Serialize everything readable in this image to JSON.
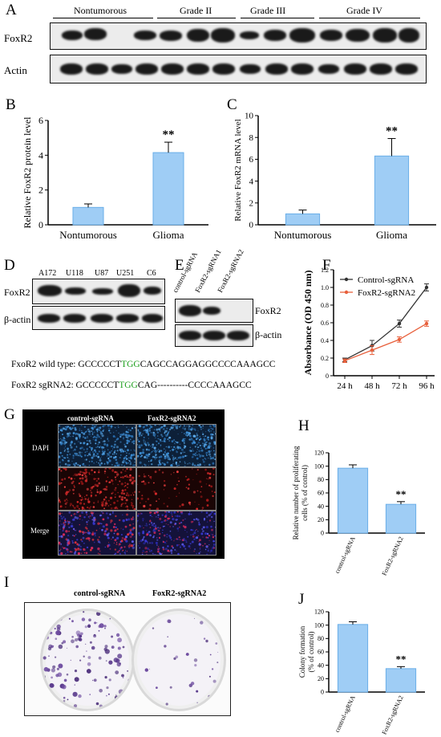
{
  "panels": [
    "A",
    "B",
    "C",
    "D",
    "E",
    "F",
    "G",
    "H",
    "I",
    "J"
  ],
  "panelA": {
    "groups": [
      "Nontumorous",
      "Grade II",
      "Grade III",
      "Grade IV"
    ],
    "rows": [
      "FoxR2",
      "Actin"
    ]
  },
  "panelB": {
    "chart_data": {
      "type": "bar",
      "categories": [
        "Nontumorous",
        "Glioma"
      ],
      "values": [
        1.0,
        4.15
      ],
      "errors": [
        0.2,
        0.6
      ],
      "ylabel": "Relative FoxR2 protein level",
      "ylim": [
        0,
        6
      ],
      "yticks": [
        "0",
        "2",
        "4",
        "6"
      ],
      "annotation": "**"
    }
  },
  "panelC": {
    "chart_data": {
      "type": "bar",
      "categories": [
        "Nontumorous",
        "Glioma"
      ],
      "values": [
        1.0,
        6.3
      ],
      "errors": [
        0.35,
        1.6
      ],
      "ylabel": "Relative FoxR2 mRNA level",
      "ylim": [
        0,
        10
      ],
      "yticks": [
        "0",
        "2",
        "4",
        "6",
        "8",
        "10"
      ],
      "annotation": "**"
    }
  },
  "panelD": {
    "lanes": [
      "A172",
      "U118",
      "U87",
      "U251",
      "C6"
    ],
    "rows": [
      "FoxR2",
      "β-actin"
    ]
  },
  "panelE": {
    "lanes": [
      "control-sgRNA",
      "FoxR2-sgRNA1",
      "FoxR2-sgRNA2"
    ],
    "rows": [
      "FoxR2",
      "β-actin"
    ]
  },
  "sequences": {
    "wt_label": "FxoR2 wild type:",
    "wt_pre": "GCCCCCT",
    "wt_pam": "TGG",
    "wt_post": "CAGCCAGGAGGCCCCAAAGCC",
    "sg_label": "FoxR2  sgRNA2:",
    "sg_pre": "GCCCCCT",
    "sg_pam": "TGG",
    "sg_post": "CAG----------CCCCAAAGCC",
    "pam_color": "#1a9e1a"
  },
  "panelF": {
    "chart_data": {
      "type": "line",
      "x": [
        "24 h",
        "48 h",
        "72 h",
        "96 h"
      ],
      "series": [
        {
          "name": "Control-sgRNA",
          "values": [
            0.18,
            0.34,
            0.59,
            1.0
          ],
          "errors": [
            0.02,
            0.06,
            0.04,
            0.04
          ],
          "color": "#333333"
        },
        {
          "name": "FoxR2-sgRNA2",
          "values": [
            0.17,
            0.29,
            0.41,
            0.59
          ],
          "errors": [
            0.02,
            0.05,
            0.03,
            0.03
          ],
          "color": "#e8603c"
        }
      ],
      "ylabel": "Absorbance (OD 450 nm)",
      "ylim": [
        0,
        1.2
      ],
      "yticks": [
        "0",
        "0.2",
        "0.4",
        "0.6",
        "0.8",
        "1.0",
        "1.2"
      ],
      "legend": "top-left"
    }
  },
  "panelG": {
    "columns": [
      "control-sgRNA",
      "FoxR2-sgRNA2"
    ],
    "rows": [
      "DAPI",
      "EdU",
      "Merge"
    ]
  },
  "panelH": {
    "chart_data": {
      "type": "bar",
      "categories": [
        "control-sgRNA",
        "FoxR2-sgRNA2"
      ],
      "values": [
        97,
        43
      ],
      "errors": [
        5,
        4
      ],
      "ylabel": "Relative number of proliferating cells (% of control)",
      "ylabel_lines": [
        "Relative number of proliferating",
        "cells (% of control)"
      ],
      "ylim": [
        0,
        120
      ],
      "yticks": [
        "0",
        "20",
        "40",
        "60",
        "80",
        "100",
        "120"
      ],
      "annotation": "**"
    }
  },
  "panelI": {
    "columns": [
      "control-sgRNA",
      "FoxR2-sgRNA2"
    ]
  },
  "panelJ": {
    "chart_data": {
      "type": "bar",
      "categories": [
        "control-sgRNA",
        "FoxR2-sgRNA2"
      ],
      "values": [
        101,
        35
      ],
      "errors": [
        4,
        3
      ],
      "ylabel": "Colony formation (% of control)",
      "ylabel_lines": [
        "Colony formation",
        "(% of control)"
      ],
      "ylim": [
        0,
        120
      ],
      "yticks": [
        "0",
        "20",
        "40",
        "60",
        "80",
        "100",
        "120"
      ],
      "annotation": "**"
    }
  },
  "colors": {
    "bar_fill": "#9fcdf5",
    "bar_edge": "#6aaee8"
  }
}
